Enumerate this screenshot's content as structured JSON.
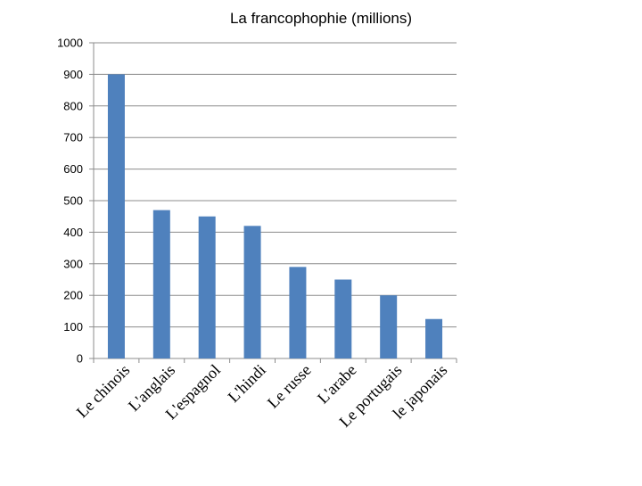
{
  "chart_data": {
    "type": "bar",
    "title": "La francophophie (millions)",
    "xlabel": "",
    "ylabel": "",
    "categories": [
      "Le chinois",
      "L'anglais",
      "L'espagnol",
      "L'hindi",
      "Le russe",
      "L'arabe",
      "Le portugais",
      "le japonais"
    ],
    "values": [
      900,
      470,
      450,
      420,
      290,
      250,
      200,
      125
    ],
    "ylim": [
      0,
      1000
    ],
    "yticks": [
      "0",
      "100",
      "200",
      "300",
      "400",
      "500",
      "600",
      "700",
      "800",
      "900",
      "1000"
    ],
    "grid": true,
    "legend": "none",
    "bar_color": "#4f81bd"
  }
}
